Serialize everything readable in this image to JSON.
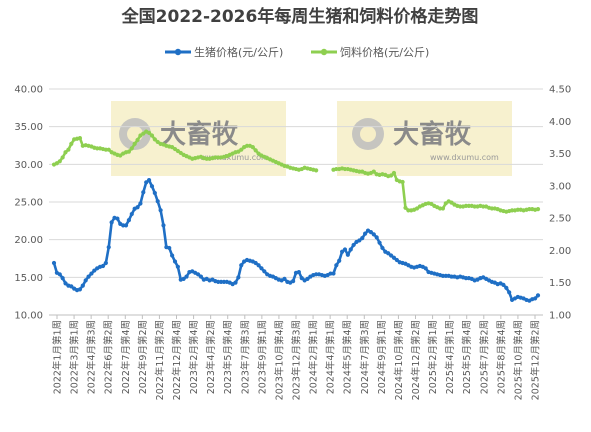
{
  "chart_data": {
    "type": "line",
    "title": "全国2022-2026年每周生猪和饲料价格走势图",
    "watermark": {
      "text": "大畜牧",
      "sub": "www.dxumu.com"
    },
    "y_left": {
      "min": 10,
      "max": 40,
      "ticks": [
        "10.00",
        "15.00",
        "20.00",
        "25.00",
        "30.00",
        "35.00",
        "40.00"
      ]
    },
    "y_right": {
      "min": 1.0,
      "max": 4.5,
      "ticks": [
        "1.00",
        "1.50",
        "2.00",
        "2.50",
        "3.00",
        "3.50",
        "4.00",
        "4.50"
      ]
    },
    "x_tick_labels": [
      "2022年1月第1周",
      "2022年3月第1周",
      "2022年4月第3周",
      "2022年6月第2周",
      "2022年7月第4周",
      "2022年9月第2周",
      "2022年11月第2周",
      "2022年12月第4周",
      "2023年2月第4周",
      "2023年4月第2周",
      "2023年5月第4周",
      "2023年7月第3周",
      "2023年9月第1周",
      "2023年10月第4周",
      "2023年12月第3周",
      "2024年2月第1周",
      "2024年4月第1周",
      "2024年5月第4周",
      "2024年7月第3周",
      "2024年9月第1周",
      "2024年10月第4周",
      "2024年12月第2周",
      "2025年2月第1周",
      "2025年4月第1周",
      "2025年5月第4周",
      "2025年7月第2周",
      "2025年8月第4周",
      "2025年10月第4周",
      "2025年12月第2周"
    ],
    "series": [
      {
        "name": "生猪价格(元/公斤)",
        "axis": "left",
        "color": "#1F6FC5",
        "values": [
          16.9,
          15.6,
          15.4,
          14.9,
          14.2,
          13.9,
          13.8,
          13.5,
          13.3,
          13.4,
          13.9,
          14.6,
          15.1,
          15.5,
          15.9,
          16.2,
          16.4,
          16.5,
          16.9,
          19.0,
          22.3,
          22.9,
          22.8,
          22.1,
          21.9,
          21.9,
          22.6,
          23.4,
          24.1,
          24.3,
          24.8,
          26.3,
          27.6,
          27.9,
          27.1,
          26.2,
          25.1,
          23.9,
          21.9,
          19.0,
          18.9,
          17.9,
          17.1,
          16.4,
          14.7,
          14.8,
          15.1,
          15.7,
          15.8,
          15.6,
          15.4,
          15.1,
          14.7,
          14.8,
          14.6,
          14.7,
          14.5,
          14.4,
          14.4,
          14.4,
          14.4,
          14.3,
          14.1,
          14.3,
          15.0,
          16.6,
          17.1,
          17.3,
          17.2,
          17.1,
          16.9,
          16.6,
          16.2,
          15.8,
          15.4,
          15.2,
          15.1,
          14.9,
          14.7,
          14.6,
          14.8,
          14.4,
          14.3,
          14.5,
          15.6,
          15.7,
          14.9,
          14.6,
          14.8,
          15.1,
          15.3,
          15.4,
          15.4,
          15.3,
          15.2,
          15.3,
          15.5,
          15.5,
          16.6,
          17.2,
          18.4,
          18.7,
          18.0,
          18.7,
          19.3,
          19.7,
          19.9,
          20.2,
          20.8,
          21.2,
          21.0,
          20.7,
          20.3,
          19.6,
          18.9,
          18.4,
          18.2,
          17.9,
          17.6,
          17.3,
          17.0,
          16.9,
          16.8,
          16.6,
          16.4,
          16.3,
          16.4,
          16.5,
          16.4,
          16.2,
          15.7,
          15.6,
          15.5,
          15.4,
          15.3,
          15.2,
          15.2,
          15.2,
          15.1,
          15.1,
          15.0,
          15.1,
          15.0,
          14.9,
          14.9,
          14.8,
          14.6,
          14.7,
          14.9,
          15.0,
          14.8,
          14.6,
          14.4,
          14.3,
          14.1,
          14.2,
          14.0,
          13.6,
          13.0,
          12.0,
          12.2,
          12.4,
          12.3,
          12.2,
          12.0,
          11.9,
          12.1,
          12.2,
          12.6
        ]
      },
      {
        "name": "饲料价格(元/公斤)",
        "axis": "right",
        "color": "#8ECF50",
        "values": [
          3.33,
          3.35,
          3.38,
          3.44,
          3.52,
          3.56,
          3.65,
          3.72,
          3.73,
          3.74,
          3.62,
          3.63,
          3.62,
          3.61,
          3.59,
          3.58,
          3.58,
          3.57,
          3.56,
          3.56,
          3.52,
          3.5,
          3.48,
          3.47,
          3.5,
          3.52,
          3.53,
          3.58,
          3.65,
          3.71,
          3.78,
          3.81,
          3.84,
          3.82,
          3.78,
          3.72,
          3.68,
          3.65,
          3.64,
          3.62,
          3.61,
          3.6,
          3.57,
          3.54,
          3.51,
          3.48,
          3.46,
          3.44,
          3.42,
          3.43,
          3.44,
          3.45,
          3.43,
          3.42,
          3.42,
          3.43,
          3.44,
          3.44,
          3.44,
          3.45,
          3.46,
          3.48,
          3.5,
          3.52,
          3.53,
          3.56,
          3.6,
          3.62,
          3.62,
          3.6,
          3.55,
          3.5,
          3.47,
          3.45,
          3.43,
          3.41,
          3.39,
          3.37,
          3.35,
          3.33,
          3.31,
          3.3,
          3.28,
          3.27,
          3.26,
          3.25,
          3.26,
          3.28,
          3.27,
          3.26,
          3.25,
          3.24,
          null,
          null,
          null,
          null,
          null,
          3.25,
          3.26,
          3.26,
          3.27,
          3.26,
          3.26,
          3.25,
          3.24,
          3.23,
          3.22,
          3.22,
          3.2,
          3.19,
          3.2,
          3.22,
          3.18,
          3.17,
          3.18,
          3.17,
          3.15,
          3.16,
          3.2,
          3.09,
          3.07,
          3.06,
          2.66,
          2.62,
          2.62,
          2.63,
          2.65,
          2.68,
          2.7,
          2.72,
          2.73,
          2.72,
          2.69,
          2.67,
          2.65,
          2.65,
          2.73,
          2.76,
          2.74,
          2.71,
          2.69,
          2.68,
          2.68,
          2.69,
          2.69,
          2.69,
          2.68,
          2.68,
          2.69,
          2.68,
          2.68,
          2.66,
          2.65,
          2.65,
          2.64,
          2.62,
          2.61,
          2.6,
          2.61,
          2.62,
          2.62,
          2.63,
          2.63,
          2.62,
          2.63,
          2.64,
          2.64,
          2.63,
          2.64
        ]
      }
    ]
  }
}
